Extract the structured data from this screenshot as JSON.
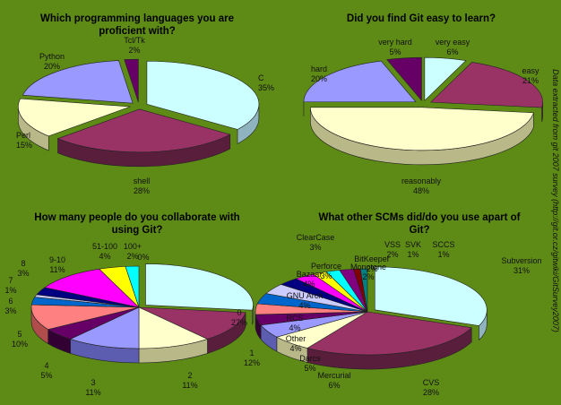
{
  "side_note": "Data extracted from git 2007 survey (http://git.or.cz/gitwiki/GitSurvey2007)",
  "chart_data": [
    {
      "type": "pie",
      "title_lines": [
        "Which programming languages you are",
        "proficient with?"
      ],
      "slices": [
        {
          "name": "C",
          "label": "35%",
          "value": 35,
          "color": "#ccffff",
          "side": "#8fb4c0",
          "explode": 1
        },
        {
          "name": "shell",
          "label": "28%",
          "value": 28,
          "color": "#993366",
          "side": "#5a1e3d",
          "explode": 1
        },
        {
          "name": "Perl",
          "label": "15%",
          "value": 15,
          "color": "#ffffcc",
          "side": "#b8b888",
          "explode": 1
        },
        {
          "name": "Python",
          "label": "20%",
          "value": 20,
          "color": "#9999ff",
          "side": "#5c5cb0",
          "explode": 1
        },
        {
          "name": "Tcl/Tk",
          "label": "2%",
          "value": 2,
          "color": "#660066",
          "side": "#330033",
          "explode": 1
        }
      ]
    },
    {
      "type": "pie",
      "title_lines": [
        "Did you find Git easy to learn?"
      ],
      "slices": [
        {
          "name": "very easy",
          "label": "6%",
          "value": 6,
          "color": "#ccffff",
          "side": "#8fb4c0",
          "explode": 1
        },
        {
          "name": "easy",
          "label": "21%",
          "value": 21,
          "color": "#993366",
          "side": "#5a1e3d",
          "explode": 1
        },
        {
          "name": "reasonably",
          "label": "48%",
          "value": 48,
          "color": "#ffffcc",
          "side": "#b8b888",
          "explode": 1
        },
        {
          "name": "hard",
          "label": "20%",
          "value": 20,
          "color": "#9999ff",
          "side": "#5c5cb0",
          "explode": 1
        },
        {
          "name": "very hard",
          "label": "5%",
          "value": 5,
          "color": "#660066",
          "side": "#330033",
          "explode": 1
        }
      ]
    },
    {
      "type": "pie",
      "title_lines": [
        "How many people do you collaborate with",
        "using Git?"
      ],
      "slices": [
        {
          "name": "0",
          "label": "27%",
          "value": 27,
          "color": "#ccffff",
          "side": "#8fb4c0",
          "explode": 1
        },
        {
          "name": "1",
          "label": "12%",
          "value": 12,
          "color": "#993366",
          "side": "#5a1e3d",
          "explode": 0
        },
        {
          "name": "2",
          "label": "11%",
          "value": 11,
          "color": "#ffffcc",
          "side": "#b8b888",
          "explode": 0
        },
        {
          "name": "3",
          "label": "11%",
          "value": 11,
          "color": "#9999ff",
          "side": "#5c5cb0",
          "explode": 0
        },
        {
          "name": "4",
          "label": "5%",
          "value": 5,
          "color": "#660066",
          "side": "#330033",
          "explode": 0
        },
        {
          "name": "5",
          "label": "10%",
          "value": 10,
          "color": "#ff8080",
          "side": "#b04c4c",
          "explode": 0
        },
        {
          "name": "6",
          "label": "3%",
          "value": 3,
          "color": "#0066cc",
          "side": "#003d7a",
          "explode": 0
        },
        {
          "name": "7",
          "label": "1%",
          "value": 1,
          "color": "#ccccff",
          "side": "#8a8ab4",
          "explode": 0
        },
        {
          "name": "8",
          "label": "3%",
          "value": 3,
          "color": "#000080",
          "side": "#000050",
          "explode": 0
        },
        {
          "name": "9-10",
          "label": "11%",
          "value": 11,
          "color": "#ff00ff",
          "side": "#aa00aa",
          "explode": 0
        },
        {
          "name": "51-100",
          "label": "4%",
          "value": 4,
          "color": "#ffff00",
          "side": "#aaaa00",
          "explode": 0
        },
        {
          "name": "100+",
          "label": "2%",
          "value": 2,
          "color": "#00ffff",
          "side": "#00aaaa",
          "explode": 0
        }
      ],
      "extra_labels": [
        {
          "text": "0%"
        }
      ]
    },
    {
      "type": "pie",
      "title_lines": [
        "What other SCMs did/do you use apart of",
        "Git?"
      ],
      "slices": [
        {
          "name": "Subversion",
          "label": "31%",
          "value": 31,
          "color": "#ccffff",
          "side": "#8fb4c0",
          "explode": 1
        },
        {
          "name": "CVS",
          "label": "28%",
          "value": 28,
          "color": "#993366",
          "side": "#5a1e3d",
          "explode": 0
        },
        {
          "name": "Mercurial",
          "label": "6%",
          "value": 6,
          "color": "#ffffcc",
          "side": "#b8b888",
          "explode": 0
        },
        {
          "name": "Darcs",
          "label": "5%",
          "value": 5,
          "color": "#9999ff",
          "side": "#5c5cb0",
          "explode": 0
        },
        {
          "name": "Other",
          "label": "4%",
          "value": 4,
          "color": "#660066",
          "side": "#330033",
          "explode": 0
        },
        {
          "name": "RCS",
          "label": "4%",
          "value": 4,
          "color": "#ff8080",
          "side": "#b04c4c",
          "explode": 0
        },
        {
          "name": "GNU Arch",
          "label": "4%",
          "value": 4,
          "color": "#0066cc",
          "side": "#003d7a",
          "explode": 0
        },
        {
          "name": "Bazaar",
          "label": "4%",
          "value": 4,
          "color": "#ccccff",
          "side": "#8a8ab4",
          "explode": 0
        },
        {
          "name": "ClearCase",
          "label": "3%",
          "value": 3,
          "color": "#000080",
          "side": "#000050",
          "explode": 0
        },
        {
          "name": "Perforce",
          "label": "3%",
          "value": 3,
          "color": "#ff00ff",
          "side": "#aa00aa",
          "explode": 0
        },
        {
          "name": "BitKeeper",
          "label": "2%",
          "value": 2,
          "color": "#ffff00",
          "side": "#aaaa00",
          "explode": 0
        },
        {
          "name": "Monotone",
          "label": "2%",
          "value": 2,
          "color": "#00ffff",
          "side": "#00aaaa",
          "explode": 0
        },
        {
          "name": "VSS",
          "label": "2%",
          "value": 2,
          "color": "#800080",
          "side": "#500050",
          "explode": 0
        },
        {
          "name": "SVK",
          "label": "1%",
          "value": 1,
          "color": "#800000",
          "side": "#500000",
          "explode": 0
        },
        {
          "name": "SCCS",
          "label": "1%",
          "value": 1,
          "color": "#008080",
          "side": "#005050",
          "explode": 0
        }
      ]
    }
  ]
}
